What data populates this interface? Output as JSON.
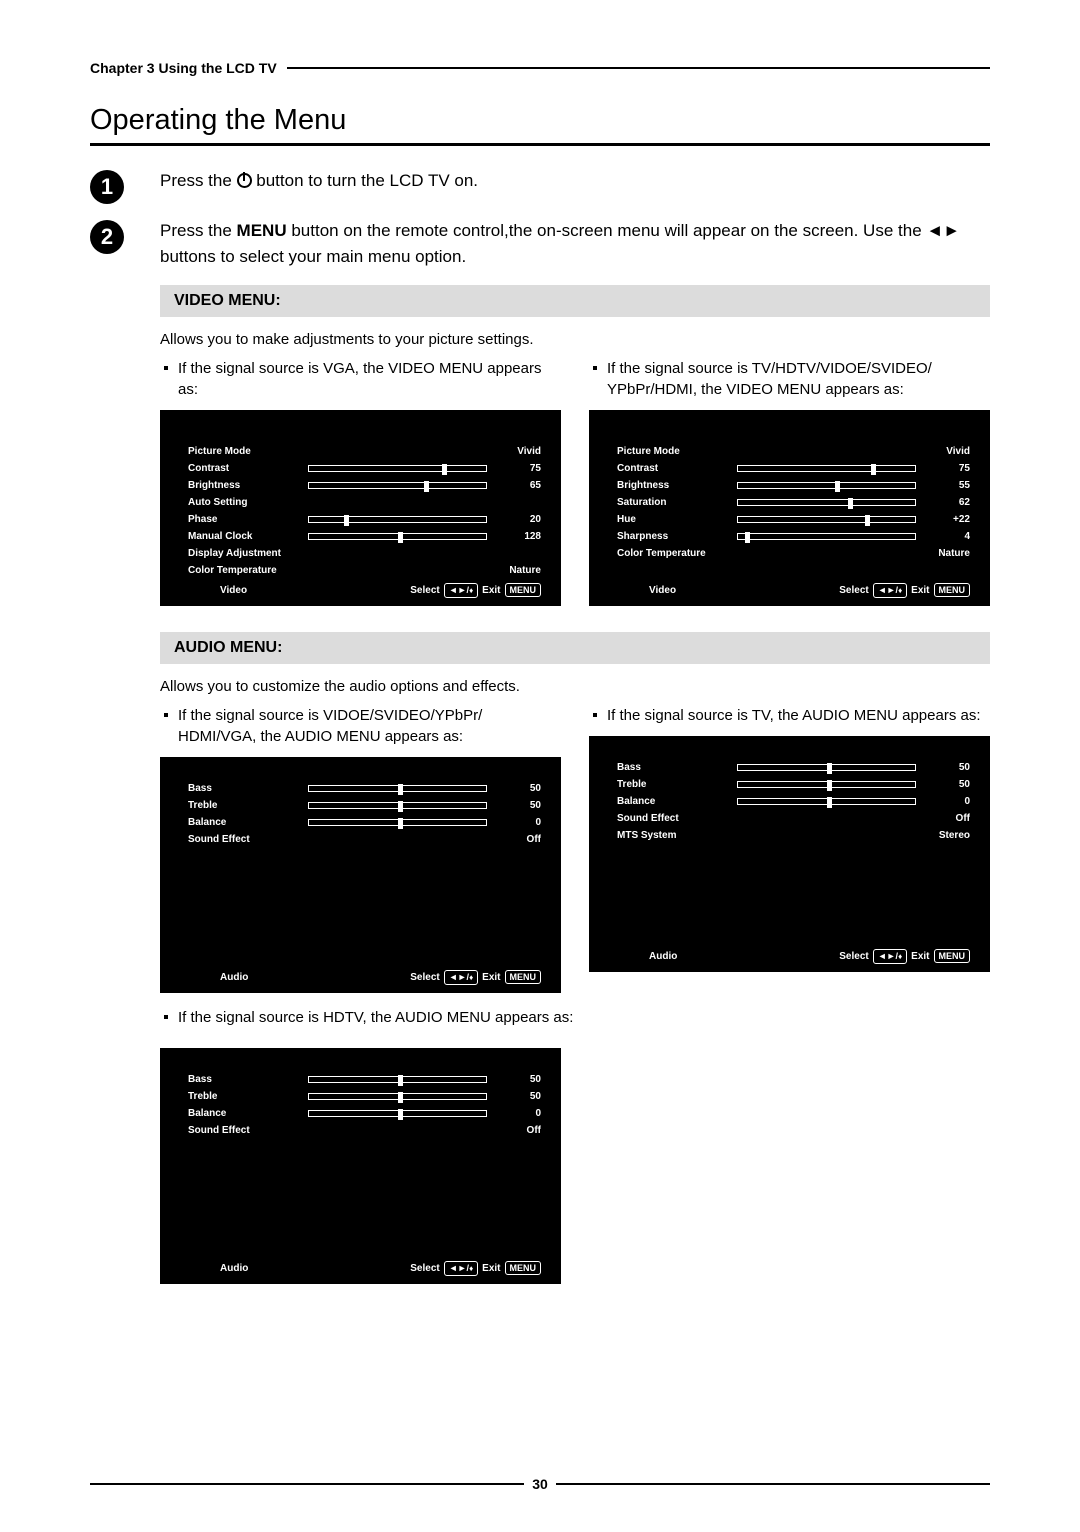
{
  "header": {
    "chapter": "Chapter 3 Using the LCD TV"
  },
  "title": "Operating the Menu",
  "steps": {
    "s1_pre": "Press the ",
    "s1_post": " button to turn the LCD TV on.",
    "s2_a": "Press the ",
    "s2_menu": "MENU",
    "s2_b": " button on the remote control,the on-screen menu will appear on the screen. Use the ◄► buttons to select your main menu option."
  },
  "video": {
    "heading": "VIDEO MENU:",
    "desc": "Allows you to make adjustments to your picture settings.",
    "left_note": "If the signal source is VGA, the VIDEO MENU appears as:",
    "right_note": "If the signal source is TV/HDTV/VIDOE/SVIDEO/ YPbPr/HDMI, the VIDEO MENU appears as:",
    "left_menu": {
      "rows": [
        {
          "label": "Picture Mode",
          "value": "Vivid",
          "bar": null
        },
        {
          "label": "Contrast",
          "value": "75",
          "bar": 75
        },
        {
          "label": "Brightness",
          "value": "65",
          "bar": 65
        },
        {
          "label": "Auto Setting",
          "value": "",
          "bar": null
        },
        {
          "label": "Phase",
          "value": "20",
          "bar": 20
        },
        {
          "label": "Manual Clock",
          "value": "128",
          "bar": 50
        },
        {
          "label": "Display Adjustment",
          "value": "",
          "bar": null
        },
        {
          "label": "Color Temperature",
          "value": "Nature",
          "bar": null
        }
      ],
      "footer_left": "Video"
    },
    "right_menu": {
      "rows": [
        {
          "label": "Picture Mode",
          "value": "Vivid",
          "bar": null
        },
        {
          "label": "Contrast",
          "value": "75",
          "bar": 75
        },
        {
          "label": "Brightness",
          "value": "55",
          "bar": 55
        },
        {
          "label": "Saturation",
          "value": "62",
          "bar": 62
        },
        {
          "label": "Hue",
          "value": "+22",
          "bar": 72
        },
        {
          "label": "Sharpness",
          "value": "4",
          "bar": 4
        },
        {
          "label": "Color Temperature",
          "value": "Nature",
          "bar": null
        }
      ],
      "footer_left": "Video"
    }
  },
  "audio": {
    "heading": "AUDIO MENU:",
    "desc": "Allows you to customize the audio options and effects.",
    "left_note": "If the signal source is VIDOE/SVIDEO/YPbPr/ HDMI/VGA, the AUDIO MENU appears as:",
    "right_note": "If the signal source is TV, the AUDIO MENU appears as:",
    "hdtv_note": "If the signal source is HDTV, the AUDIO MENU appears as:",
    "menu_a": {
      "rows": [
        {
          "label": "Bass",
          "value": "50",
          "bar": 50
        },
        {
          "label": "Treble",
          "value": "50",
          "bar": 50
        },
        {
          "label": "Balance",
          "value": "0",
          "bar": 50
        },
        {
          "label": "Sound Effect",
          "value": "Off",
          "bar": null
        }
      ],
      "footer_left": "Audio"
    },
    "menu_b": {
      "rows": [
        {
          "label": "Bass",
          "value": "50",
          "bar": 50
        },
        {
          "label": "Treble",
          "value": "50",
          "bar": 50
        },
        {
          "label": "Balance",
          "value": "0",
          "bar": 50
        },
        {
          "label": "Sound Effect",
          "value": "Off",
          "bar": null
        },
        {
          "label": "MTS System",
          "value": "Stereo",
          "bar": null
        }
      ],
      "footer_left": "Audio"
    },
    "menu_c": {
      "rows": [
        {
          "label": "Bass",
          "value": "50",
          "bar": 50
        },
        {
          "label": "Treble",
          "value": "50",
          "bar": 50
        },
        {
          "label": "Balance",
          "value": "0",
          "bar": 50
        },
        {
          "label": "Sound Effect",
          "value": "Off",
          "bar": null
        }
      ],
      "footer_left": "Audio"
    }
  },
  "osd_footer": {
    "select": "Select",
    "nav": "◄►/",
    "exit": "Exit",
    "menu": "MENU",
    "updown": "▲▼"
  },
  "page_number": "30"
}
